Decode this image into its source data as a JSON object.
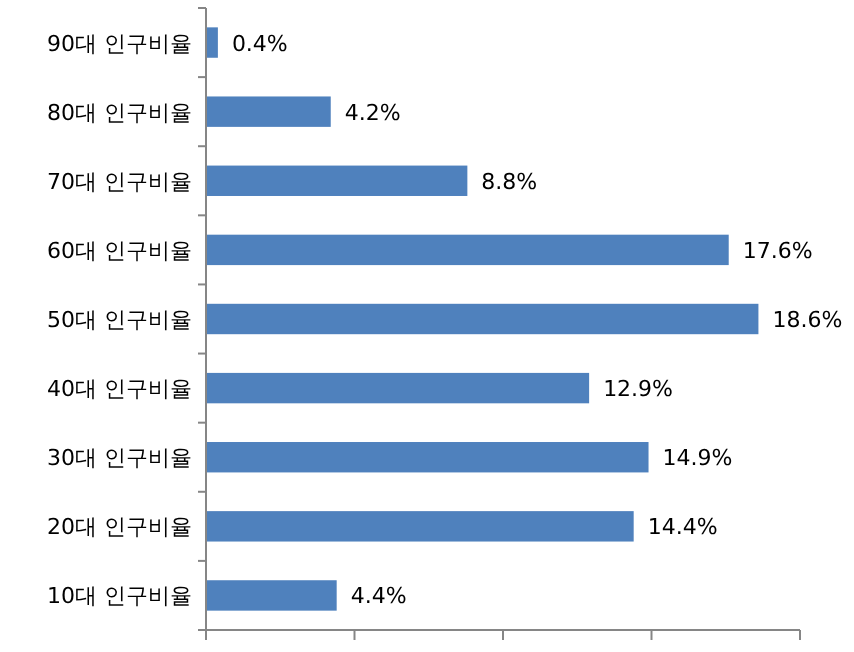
{
  "chart_data": {
    "type": "bar",
    "orientation": "horizontal",
    "categories": [
      "90대 인구비율",
      "80대 인구비율",
      "70대 인구비율",
      "60대 인구비율",
      "50대 인구비율",
      "40대 인구비율",
      "30대 인구비율",
      "20대 인구비율",
      "10대 인구비율"
    ],
    "values": [
      0.4,
      4.2,
      8.8,
      17.6,
      18.6,
      12.9,
      14.9,
      14.4,
      4.4
    ],
    "value_labels": [
      "0.4%",
      "4.2%",
      "8.8%",
      "17.6%",
      "18.6%",
      "12.9%",
      "14.9%",
      "14.4%",
      "4.4%"
    ],
    "color": "#4f81bd",
    "xlim": [
      0,
      20
    ],
    "xticks": [
      {
        "value": 0,
        "label": null
      },
      {
        "value": 5,
        "label": null
      },
      {
        "value": 10,
        "label": null
      },
      {
        "value": 15,
        "label": null
      },
      {
        "value": 20,
        "label": null
      }
    ],
    "grid": false
  }
}
